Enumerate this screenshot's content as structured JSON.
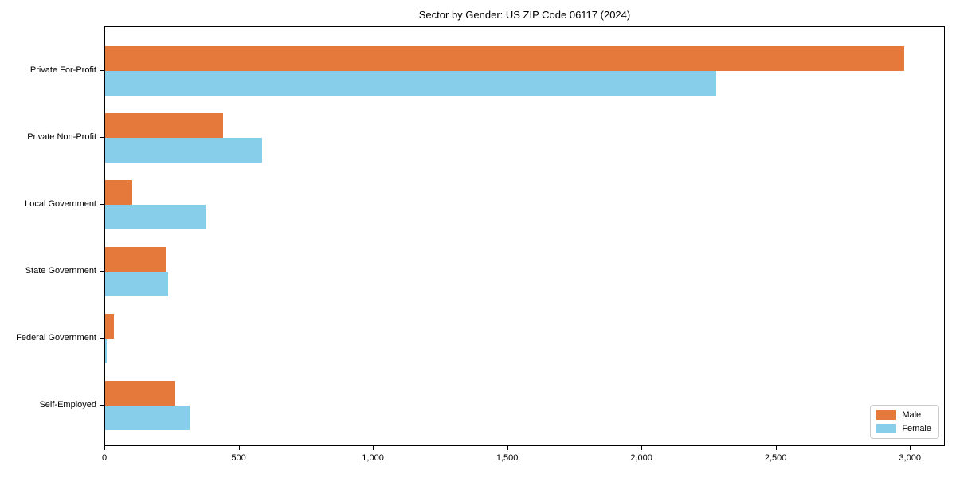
{
  "chart_data": {
    "type": "bar",
    "orientation": "horizontal",
    "title": "Sector by Gender: US ZIP Code 06117 (2024)",
    "xlabel": "",
    "ylabel": "",
    "categories": [
      "Private For-Profit",
      "Private Non-Profit",
      "Local Government",
      "State Government",
      "Federal Government",
      "Self-Employed"
    ],
    "series": [
      {
        "name": "Male",
        "color": "#E5793C",
        "values": [
          2975,
          440,
          100,
          225,
          33,
          260
        ]
      },
      {
        "name": "Female",
        "color": "#87CEEB",
        "values": [
          2275,
          585,
          375,
          235,
          5,
          315
        ]
      }
    ],
    "xlim": [
      0,
      3130
    ],
    "xticks": [
      0,
      500,
      1000,
      1500,
      2000,
      2500,
      3000
    ],
    "xtick_labels": [
      "0",
      "500",
      "1,000",
      "1,500",
      "2,000",
      "2,500",
      "3,000"
    ],
    "grid": false,
    "legend_position": "lower right",
    "background_color": "#ffffff",
    "spine_color": "#000000"
  }
}
